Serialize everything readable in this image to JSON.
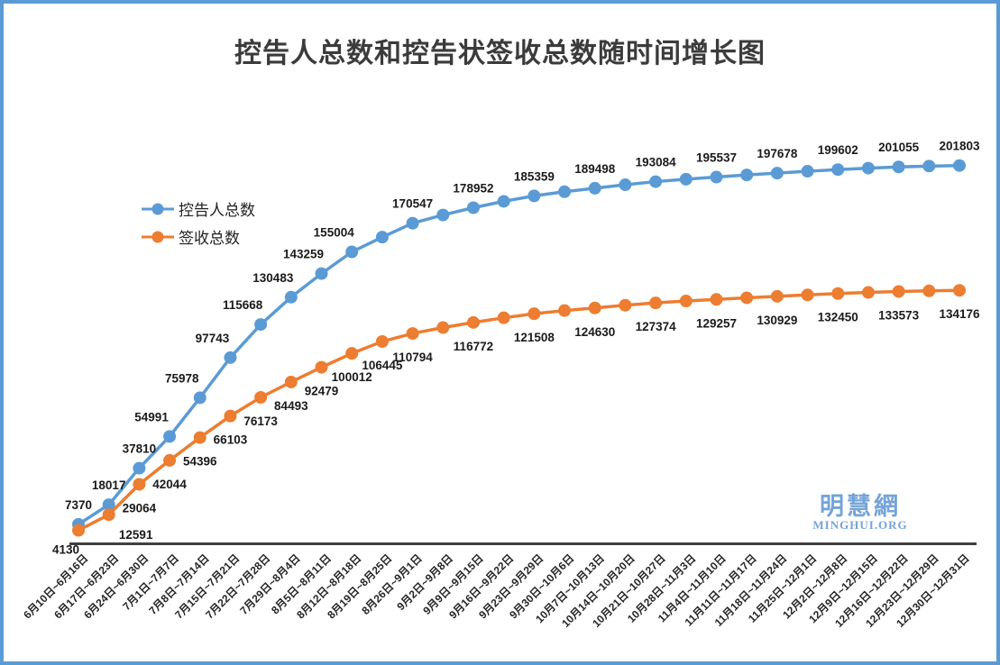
{
  "title": "控告人总数和控告状签收总数随时间增长图",
  "legend": [
    {
      "label": "控告人总数",
      "color": "#5b9bd5"
    },
    {
      "label": "签收总数",
      "color": "#ed7d31"
    }
  ],
  "watermark": {
    "cjk": "明慧網",
    "latin": "MINGHUI.ORG",
    "color": "#74a3d8"
  },
  "chart_data": {
    "type": "line",
    "title": "控告人总数和控告状签收总数随时间增长图",
    "grid": false,
    "legend_position": "inside-top-left",
    "axis_color": "#404040",
    "label_color": "#1a1a1a",
    "ylim": [
      0,
      250000
    ],
    "categories": [
      "6月10日~6月16日",
      "6月17日~6月23日",
      "6月24日~6月30日",
      "7月1日~7月7日",
      "7月8日~7月14日",
      "7月15日~7月21日",
      "7月22日~7月28日",
      "7月29日~8月4日",
      "8月5日~8月11日",
      "8月12日~8月18日",
      "8月19日~8月25日",
      "8月26日~9月1日",
      "9月2日~9月8日",
      "9月9日~9月15日",
      "9月16日~9月22日",
      "9月23日~9月29日",
      "9月30日~10月6日",
      "10月7日~10月13日",
      "10月14日~10月20日",
      "10月21日~10月27日",
      "10月28日~11月3日",
      "11月4日~11月10日",
      "11月11日~11月17日",
      "11月18日~11月24日",
      "11月25日~12月1日",
      "12月2日~12月8日",
      "12月9日~12月15日",
      "12月16日~12月22日",
      "12月23日~12月29日",
      "12月30日~12月31日"
    ],
    "series": [
      {
        "name": "控告人总数",
        "color": "#5b9bd5",
        "values": [
          7370,
          18017,
          37810,
          54991,
          75978,
          97743,
          115668,
          130483,
          143259,
          155004,
          163000,
          170547,
          175000,
          178952,
          182400,
          185359,
          187600,
          189498,
          191400,
          193084,
          194400,
          195537,
          196700,
          197678,
          198700,
          199602,
          200400,
          201055,
          201500,
          201803
        ],
        "data_labels": [
          "7370",
          "18017",
          "37810",
          "54991",
          "75978",
          "97743",
          "115668",
          "130483",
          "143259",
          "155004",
          "",
          "170547",
          "",
          "178952",
          "",
          "185359",
          "",
          "189498",
          "",
          "193084",
          "",
          "195537",
          "",
          "197678",
          "",
          "199602",
          "",
          "201055",
          "",
          "201803"
        ]
      },
      {
        "name": "签收总数",
        "color": "#ed7d31",
        "values": [
          4130,
          12591,
          29064,
          42044,
          54396,
          66103,
          76173,
          84493,
          92479,
          100012,
          106445,
          110794,
          114000,
          116772,
          119300,
          121508,
          123200,
          124630,
          126100,
          127374,
          128400,
          129257,
          130150,
          130929,
          131700,
          132450,
          133050,
          133573,
          133900,
          134176
        ],
        "data_labels": [
          "4130",
          "12591",
          "29064",
          "42044",
          "54396",
          "66103",
          "76173",
          "84493",
          "92479",
          "100012",
          "106445",
          "110794",
          "",
          "116772",
          "",
          "121508",
          "",
          "124630",
          "",
          "127374",
          "",
          "129257",
          "",
          "130929",
          "",
          "132450",
          "",
          "133573",
          "",
          "134176"
        ]
      }
    ]
  }
}
